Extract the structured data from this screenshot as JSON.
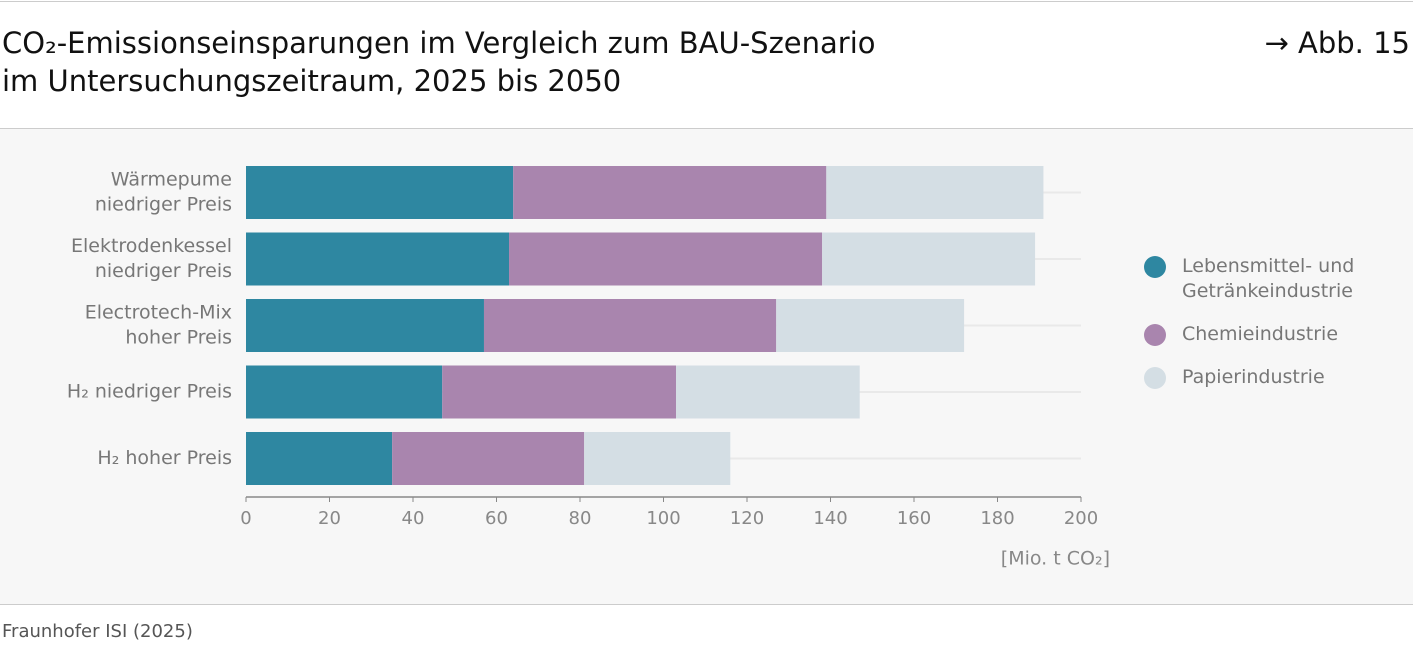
{
  "chart_data": {
    "type": "stacked-barh",
    "title": [
      "CO₂-Emissionseinsparungen im Vergleich zum BAU-Szenario",
      "im Untersuchungszeitraum, 2025 bis 2050"
    ],
    "figure_ref": "→ Abb. 15",
    "source": "Fraunhofer ISI (2025)",
    "x_label": "[Mio. t CO₂]",
    "categories": [
      [
        "Wärmepume",
        "niedriger Preis"
      ],
      [
        "Elektrodenkessel",
        "niedriger Preis"
      ],
      [
        "Electrotech-Mix",
        "hoher Preis"
      ],
      [
        "H₂ niedriger Preis"
      ],
      [
        "H₂ hoher Preis"
      ]
    ],
    "series": [
      {
        "name": "Lebensmittel- und Getränkeindustrie",
        "color": "#2e87a1",
        "values": [
          64,
          63,
          57,
          47,
          35
        ]
      },
      {
        "name": "Chemieindustrie",
        "color": "#a985ae",
        "values": [
          75,
          75,
          70,
          56,
          46
        ]
      },
      {
        "name": "Papierindustrie",
        "color": "#d4dee4",
        "values": [
          52,
          51,
          45,
          44,
          35
        ]
      }
    ],
    "xlim": [
      0,
      200
    ],
    "xticks": [
      0,
      20,
      40,
      60,
      80,
      100,
      120,
      140,
      160,
      180,
      200
    ]
  }
}
